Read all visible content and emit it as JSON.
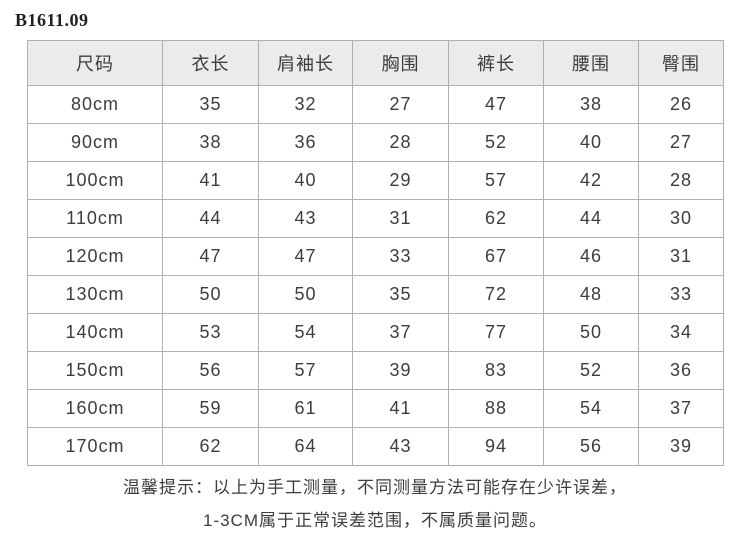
{
  "page": {
    "title": "B1611.09"
  },
  "size_chart": {
    "columns": [
      "尺码",
      "衣长",
      "肩袖长",
      "胸围",
      "裤长",
      "腰围",
      "臀围"
    ],
    "rows": [
      [
        "80cm",
        "35",
        "32",
        "27",
        "47",
        "38",
        "26"
      ],
      [
        "90cm",
        "38",
        "36",
        "28",
        "52",
        "40",
        "27"
      ],
      [
        "100cm",
        "41",
        "40",
        "29",
        "57",
        "42",
        "28"
      ],
      [
        "110cm",
        "44",
        "43",
        "31",
        "62",
        "44",
        "30"
      ],
      [
        "120cm",
        "47",
        "47",
        "33",
        "67",
        "46",
        "31"
      ],
      [
        "130cm",
        "50",
        "50",
        "35",
        "72",
        "48",
        "33"
      ],
      [
        "140cm",
        "53",
        "54",
        "37",
        "77",
        "50",
        "34"
      ],
      [
        "150cm",
        "56",
        "57",
        "39",
        "83",
        "52",
        "36"
      ],
      [
        "160cm",
        "59",
        "61",
        "41",
        "88",
        "54",
        "37"
      ],
      [
        "170cm",
        "62",
        "64",
        "43",
        "94",
        "56",
        "39"
      ]
    ]
  },
  "footnote": {
    "line1": "温馨提示：以上为手工测量，不同测量方法可能存在少许误差，",
    "line2": "1-3CM属于正常误差范围，不属质量问题。"
  },
  "colors": {
    "header_background": "#ebebeb",
    "grid_line": "#b0b0b0",
    "text": "#3d3d3d"
  }
}
